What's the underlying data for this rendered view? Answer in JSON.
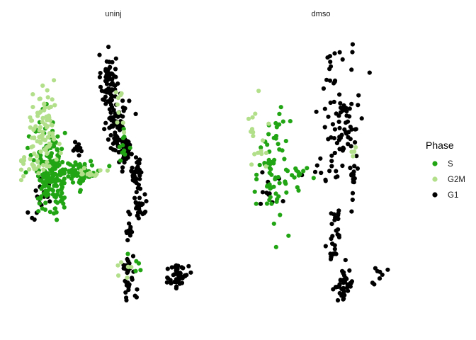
{
  "chart_data": {
    "type": "scatter",
    "facets": [
      "uninj",
      "dmso"
    ],
    "legend": {
      "title": "Phase",
      "placement": "right",
      "entries": [
        {
          "name": "S",
          "color": "#22a514"
        },
        {
          "name": "G2M",
          "color": "#b2df8a"
        },
        {
          "name": "G1",
          "color": "#000000"
        }
      ]
    },
    "axes": "none",
    "grid": false,
    "clusters": {
      "uninj": [
        {
          "phase": "G1",
          "n": 70,
          "cx": 0.47,
          "cy": 0.82,
          "sx": 0.02,
          "sy": 0.05
        },
        {
          "phase": "G1",
          "n": 85,
          "cx": 0.52,
          "cy": 0.66,
          "sx": 0.03,
          "sy": 0.06
        },
        {
          "phase": "G1",
          "n": 22,
          "cx": 0.56,
          "cy": 0.58,
          "sx": 0.012,
          "sy": 0.025
        },
        {
          "phase": "G2M",
          "n": 9,
          "cx": 0.53,
          "cy": 0.72,
          "sx": 0.015,
          "sy": 0.04
        },
        {
          "phase": "G1",
          "n": 22,
          "cx": 0.64,
          "cy": 0.38,
          "sx": 0.02,
          "sy": 0.03
        },
        {
          "phase": "G1",
          "n": 20,
          "cx": 0.62,
          "cy": 0.47,
          "sx": 0.012,
          "sy": 0.03
        },
        {
          "phase": "G1",
          "n": 18,
          "cx": 0.63,
          "cy": 0.5,
          "sx": 0.015,
          "sy": 0.025
        },
        {
          "phase": "G1",
          "n": 10,
          "cx": 0.58,
          "cy": 0.58,
          "sx": 0.01,
          "sy": 0.015
        },
        {
          "phase": "G1",
          "n": 12,
          "cx": 0.58,
          "cy": 0.3,
          "sx": 0.01,
          "sy": 0.03
        },
        {
          "phase": "G1",
          "n": 28,
          "cx": 0.58,
          "cy": 0.12,
          "sx": 0.02,
          "sy": 0.04
        },
        {
          "phase": "G1",
          "n": 50,
          "cx": 0.85,
          "cy": 0.13,
          "sx": 0.025,
          "sy": 0.03
        },
        {
          "phase": "S",
          "n": 180,
          "cx": 0.17,
          "cy": 0.5,
          "sx": 0.05,
          "sy": 0.08
        },
        {
          "phase": "S",
          "n": 50,
          "cx": 0.33,
          "cy": 0.5,
          "sx": 0.05,
          "sy": 0.02
        },
        {
          "phase": "S",
          "n": 10,
          "cx": 0.55,
          "cy": 0.6,
          "sx": 0.02,
          "sy": 0.03
        },
        {
          "phase": "S",
          "n": 6,
          "cx": 0.6,
          "cy": 0.18,
          "sx": 0.02,
          "sy": 0.02
        },
        {
          "phase": "G2M",
          "n": 80,
          "cx": 0.12,
          "cy": 0.65,
          "sx": 0.04,
          "sy": 0.07
        },
        {
          "phase": "G2M",
          "n": 18,
          "cx": 0.05,
          "cy": 0.52,
          "sx": 0.04,
          "sy": 0.02
        },
        {
          "phase": "G2M",
          "n": 12,
          "cx": 0.38,
          "cy": 0.5,
          "sx": 0.03,
          "sy": 0.015
        },
        {
          "phase": "G2M",
          "n": 6,
          "cx": 0.56,
          "cy": 0.16,
          "sx": 0.02,
          "sy": 0.03
        },
        {
          "phase": "G1",
          "n": 20,
          "cx": 0.1,
          "cy": 0.4,
          "sx": 0.04,
          "sy": 0.04
        },
        {
          "phase": "G1",
          "n": 10,
          "cx": 0.3,
          "cy": 0.58,
          "sx": 0.02,
          "sy": 0.01
        }
      ],
      "dmso": [
        {
          "phase": "G1",
          "n": 60,
          "cx": 0.61,
          "cy": 0.75,
          "sx": 0.07,
          "sy": 0.1
        },
        {
          "phase": "G1",
          "n": 20,
          "cx": 0.61,
          "cy": 0.6,
          "sx": 0.04,
          "sy": 0.05
        },
        {
          "phase": "G1",
          "n": 12,
          "cx": 0.5,
          "cy": 0.5,
          "sx": 0.05,
          "sy": 0.02
        },
        {
          "phase": "G1",
          "n": 14,
          "cx": 0.68,
          "cy": 0.47,
          "sx": 0.015,
          "sy": 0.04
        },
        {
          "phase": "G1",
          "n": 18,
          "cx": 0.58,
          "cy": 0.3,
          "sx": 0.02,
          "sy": 0.04
        },
        {
          "phase": "G1",
          "n": 10,
          "cx": 0.55,
          "cy": 0.2,
          "sx": 0.015,
          "sy": 0.03
        },
        {
          "phase": "G1",
          "n": 40,
          "cx": 0.62,
          "cy": 0.1,
          "sx": 0.03,
          "sy": 0.03
        },
        {
          "phase": "G1",
          "n": 8,
          "cx": 0.85,
          "cy": 0.13,
          "sx": 0.03,
          "sy": 0.02
        },
        {
          "phase": "G1",
          "n": 10,
          "cx": 0.2,
          "cy": 0.4,
          "sx": 0.03,
          "sy": 0.04
        },
        {
          "phase": "S",
          "n": 70,
          "cx": 0.22,
          "cy": 0.5,
          "sx": 0.05,
          "sy": 0.1
        },
        {
          "phase": "S",
          "n": 10,
          "cx": 0.38,
          "cy": 0.5,
          "sx": 0.04,
          "sy": 0.015
        },
        {
          "phase": "G2M",
          "n": 18,
          "cx": 0.12,
          "cy": 0.6,
          "sx": 0.03,
          "sy": 0.08
        },
        {
          "phase": "G2M",
          "n": 4,
          "cx": 0.68,
          "cy": 0.58,
          "sx": 0.01,
          "sy": 0.02
        }
      ]
    }
  }
}
